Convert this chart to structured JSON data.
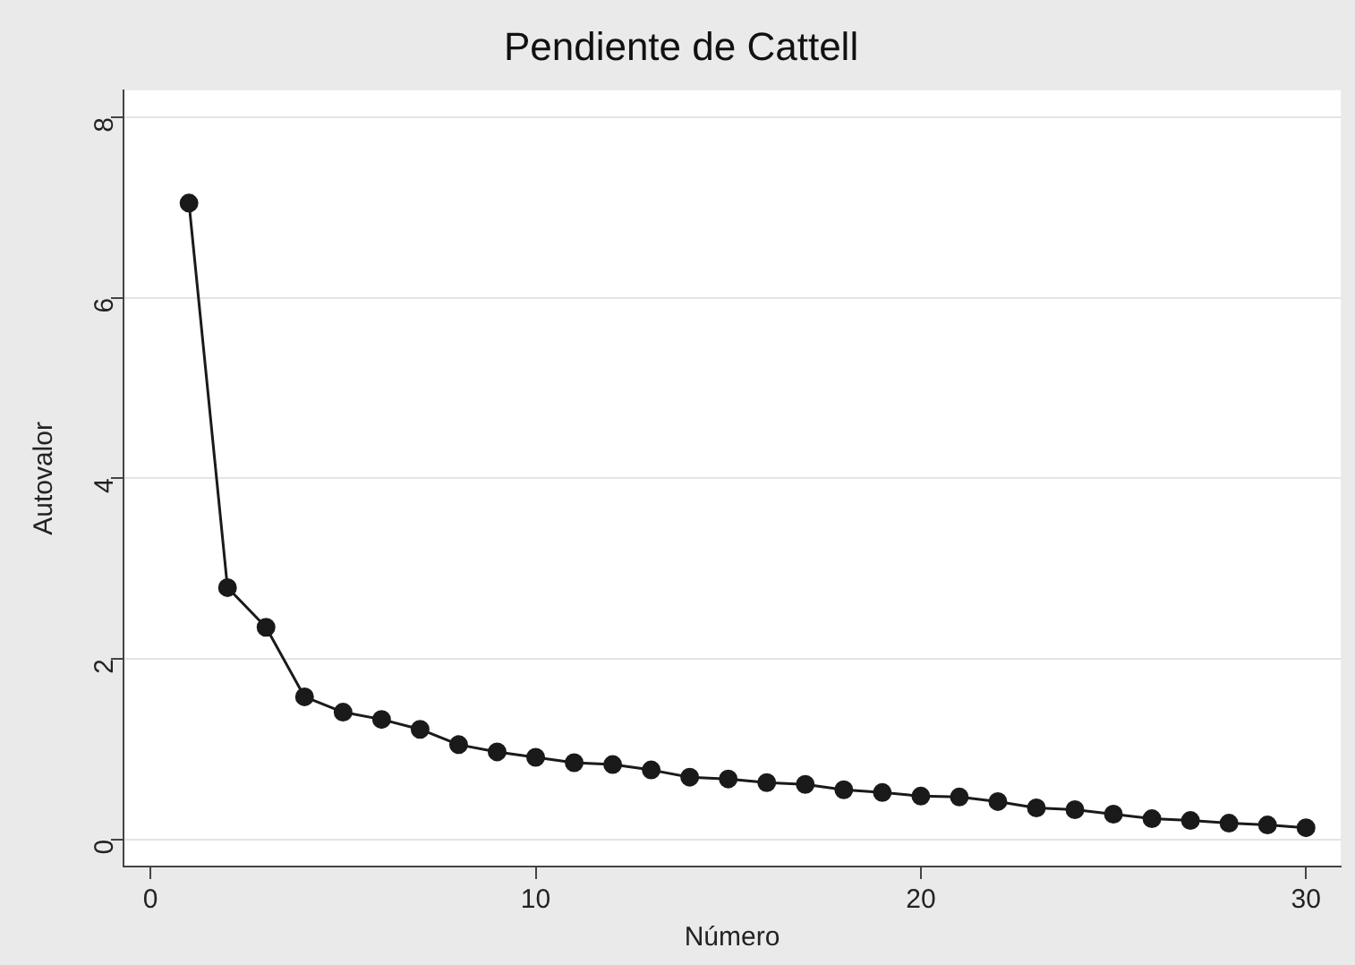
{
  "chart_data": {
    "type": "line",
    "title": "Pendiente de Cattell",
    "xlabel": "Número",
    "ylabel": "Autovalor",
    "x": [
      1,
      2,
      3,
      4,
      5,
      6,
      7,
      8,
      9,
      10,
      11,
      12,
      13,
      14,
      15,
      16,
      17,
      18,
      19,
      20,
      21,
      22,
      23,
      24,
      25,
      26,
      27,
      28,
      29,
      30
    ],
    "series": [
      {
        "color": "#1a1a1a",
        "values": [
          7.05,
          2.79,
          2.35,
          1.58,
          1.41,
          1.33,
          1.22,
          1.05,
          0.97,
          0.91,
          0.85,
          0.83,
          0.77,
          0.69,
          0.67,
          0.63,
          0.61,
          0.55,
          0.52,
          0.48,
          0.47,
          0.42,
          0.35,
          0.33,
          0.28,
          0.23,
          0.21,
          0.18,
          0.16,
          0.13
        ]
      }
    ],
    "xlim": [
      -0.7,
      30.9
    ],
    "ylim": [
      -0.3,
      8.3
    ],
    "xticks": [
      0,
      10,
      20,
      30
    ],
    "yticks": [
      0,
      2,
      4,
      6,
      8
    ],
    "grid": "y",
    "legend": false,
    "marker": "circle",
    "line_style": "solid"
  }
}
